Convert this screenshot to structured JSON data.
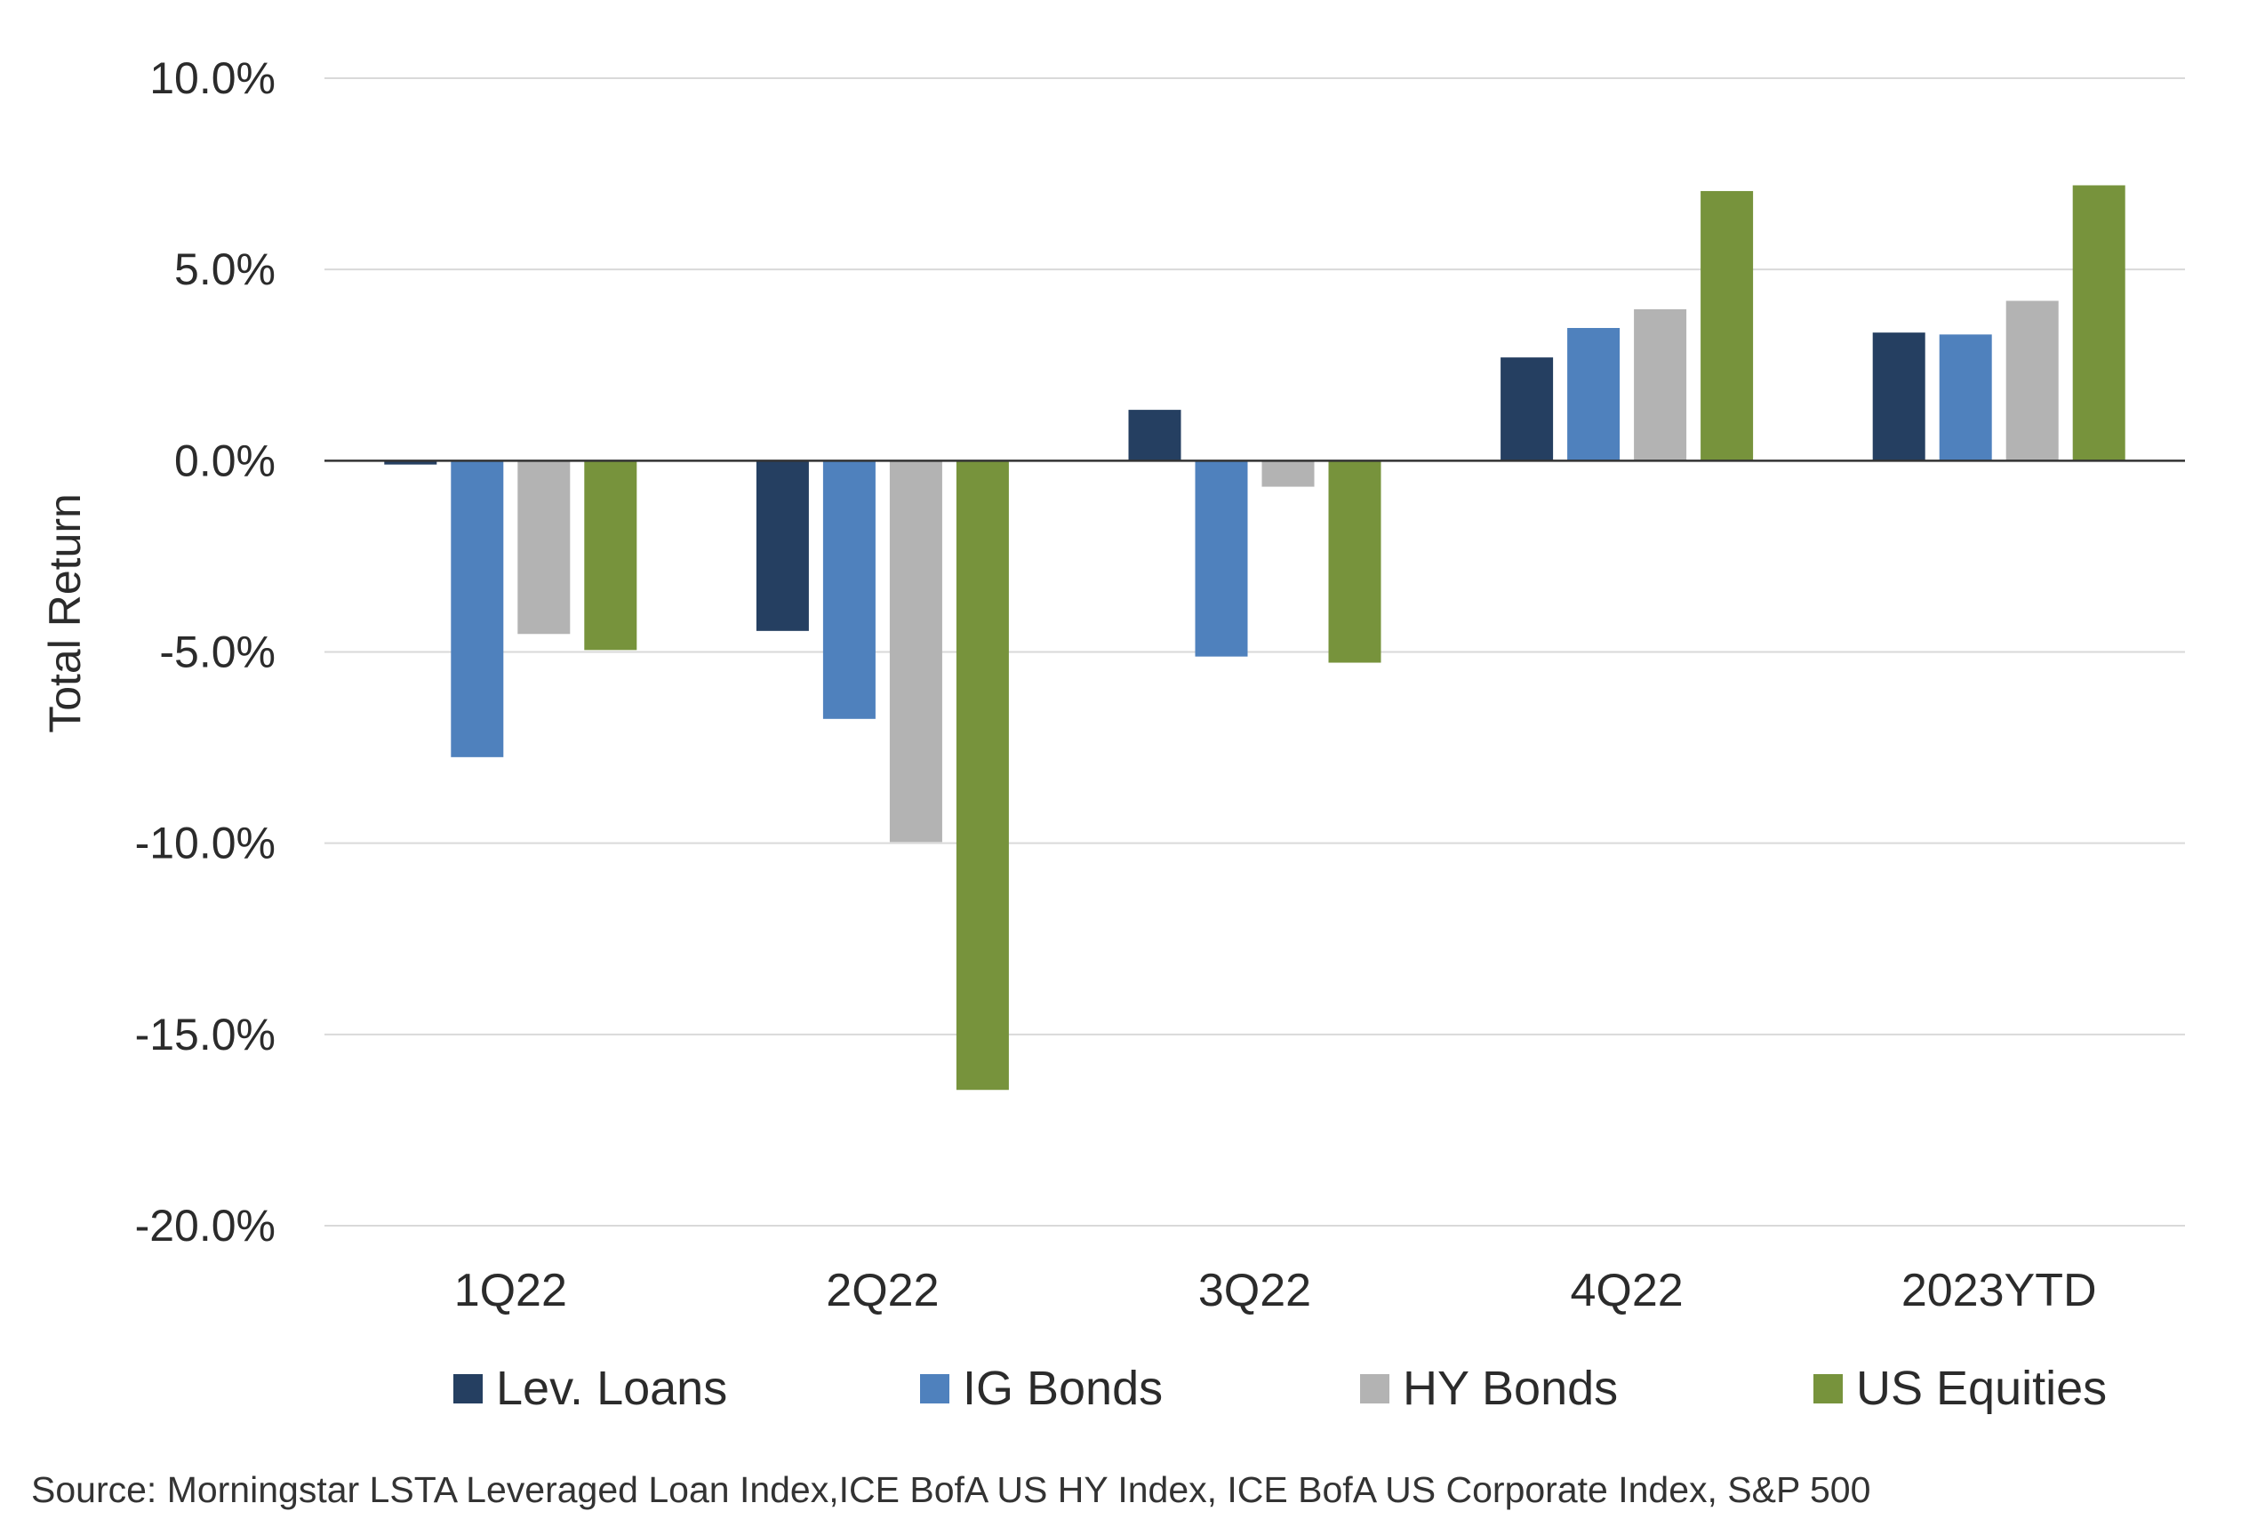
{
  "chart_data": {
    "type": "bar",
    "ylabel": "Total Return",
    "ylim": [
      -20,
      10
    ],
    "y_ticks": [
      "10.0%",
      "5.0%",
      "0.0%",
      "-5.0%",
      "-10.0%",
      "-15.0%",
      "-20.0%"
    ],
    "y_tick_values": [
      10,
      5,
      0,
      -5,
      -10,
      -15,
      -20
    ],
    "categories": [
      "1Q22",
      "2Q22",
      "3Q22",
      "4Q22",
      "2023YTD"
    ],
    "series": [
      {
        "name": "Lev. Loans",
        "color": "#253f61",
        "values": [
          -0.1,
          -4.45,
          1.33,
          2.7,
          3.35
        ]
      },
      {
        "name": "IG Bonds",
        "color": "#4f81bd",
        "values": [
          -7.75,
          -6.75,
          -5.12,
          3.47,
          3.3
        ]
      },
      {
        "name": "HY Bonds",
        "color": "#b3b3b3",
        "values": [
          -4.53,
          -9.97,
          -0.68,
          3.96,
          4.18
        ]
      },
      {
        "name": "US Equities",
        "color": "#77933c",
        "values": [
          -4.95,
          -16.45,
          -5.28,
          7.05,
          7.2
        ]
      }
    ],
    "grid": true,
    "legend_position": "bottom",
    "source": "Source: Morningstar LSTA Leveraged Loan Index,ICE BofA US HY Index, ICE BofA US Corporate Index, S&P 500"
  }
}
